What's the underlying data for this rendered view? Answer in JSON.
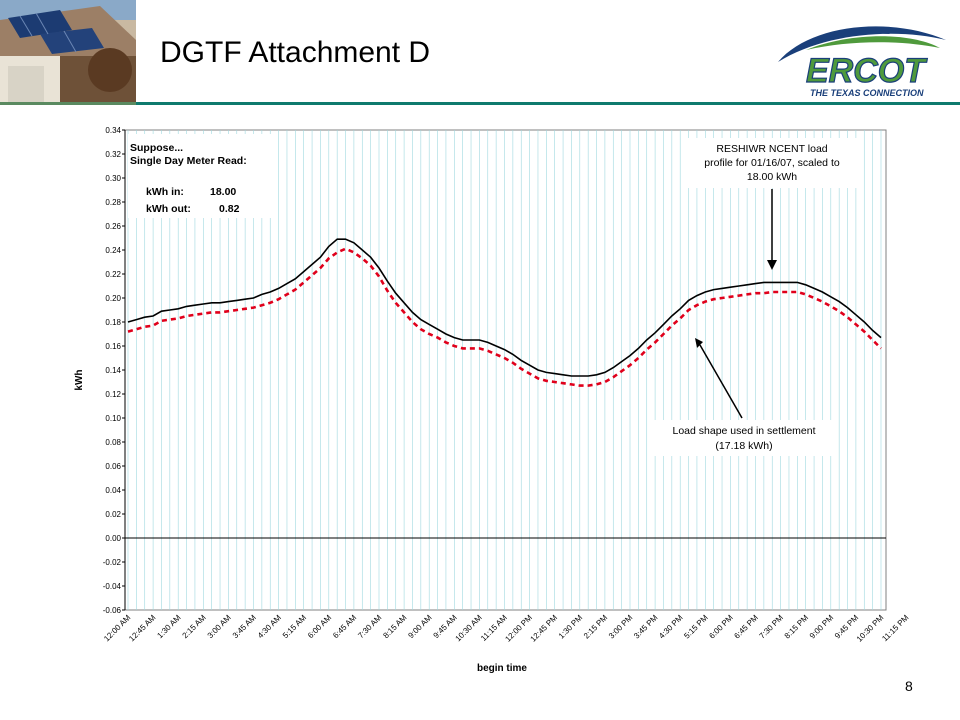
{
  "slide": {
    "title": "DGTF Attachment D",
    "number": "8",
    "logo_text": "ERCOT",
    "logo_tagline": "THE TEXAS CONNECTION",
    "colors": {
      "accent_rule": "#0f7a6e",
      "logo_navy": "#1a3f7a",
      "logo_green": "#4f9a3c"
    }
  },
  "chart_data": {
    "type": "line",
    "xlabel": "begin time",
    "ylabel": "kWh",
    "ylim": [
      -0.06,
      0.34
    ],
    "yticks": [
      "-0.06",
      "-0.04",
      "-0.02",
      "0.00",
      "0.02",
      "0.04",
      "0.06",
      "0.08",
      "0.10",
      "0.12",
      "0.14",
      "0.16",
      "0.18",
      "0.20",
      "0.22",
      "0.24",
      "0.26",
      "0.28",
      "0.30",
      "0.32",
      "0.34"
    ],
    "x_tick_labels": [
      "12:00 AM",
      "12:45 AM",
      "1:30 AM",
      "2:15 AM",
      "3:00 AM",
      "3:45 AM",
      "4:30 AM",
      "5:15 AM",
      "6:00 AM",
      "6:45 AM",
      "7:30 AM",
      "8:15 AM",
      "9:00 AM",
      "9:45 AM",
      "10:30 AM",
      "11:15 AM",
      "12:00 PM",
      "12:45 PM",
      "1:30 PM",
      "2:15 PM",
      "3:00 PM",
      "3:45 PM",
      "4:30 PM",
      "5:15 PM",
      "6:00 PM",
      "6:45 PM",
      "7:30 PM",
      "8:15 PM",
      "9:00 PM",
      "9:45 PM",
      "10:30 PM",
      "11:15 PM"
    ],
    "grid": "vertical",
    "colors": {
      "grid": "#9fd8df",
      "profile": "#000000",
      "settlement": "#e0001b"
    },
    "series": [
      {
        "key": "profile",
        "style": "solid",
        "values": [
          0.18,
          0.182,
          0.184,
          0.185,
          0.189,
          0.19,
          0.191,
          0.193,
          0.194,
          0.195,
          0.196,
          0.196,
          0.197,
          0.198,
          0.199,
          0.2,
          0.203,
          0.205,
          0.208,
          0.212,
          0.216,
          0.222,
          0.228,
          0.234,
          0.243,
          0.249,
          0.249,
          0.246,
          0.24,
          0.234,
          0.225,
          0.214,
          0.204,
          0.196,
          0.188,
          0.182,
          0.178,
          0.174,
          0.17,
          0.167,
          0.165,
          0.165,
          0.165,
          0.163,
          0.16,
          0.157,
          0.153,
          0.148,
          0.144,
          0.14,
          0.138,
          0.137,
          0.136,
          0.135,
          0.135,
          0.135,
          0.136,
          0.138,
          0.142,
          0.147,
          0.152,
          0.158,
          0.165,
          0.171,
          0.178,
          0.185,
          0.191,
          0.198,
          0.202,
          0.205,
          0.207,
          0.208,
          0.209,
          0.21,
          0.211,
          0.212,
          0.213,
          0.213,
          0.213,
          0.213,
          0.213,
          0.211,
          0.208,
          0.205,
          0.201,
          0.197,
          0.192,
          0.186,
          0.18,
          0.173,
          0.167
        ]
      },
      {
        "key": "settlement",
        "style": "dashed",
        "values": [
          0.172,
          0.174,
          0.176,
          0.177,
          0.181,
          0.182,
          0.183,
          0.185,
          0.186,
          0.187,
          0.188,
          0.188,
          0.189,
          0.19,
          0.191,
          0.192,
          0.194,
          0.196,
          0.199,
          0.203,
          0.207,
          0.213,
          0.219,
          0.225,
          0.233,
          0.238,
          0.241,
          0.238,
          0.233,
          0.227,
          0.218,
          0.206,
          0.196,
          0.188,
          0.18,
          0.174,
          0.17,
          0.167,
          0.163,
          0.16,
          0.158,
          0.158,
          0.158,
          0.156,
          0.153,
          0.15,
          0.146,
          0.141,
          0.137,
          0.133,
          0.131,
          0.13,
          0.129,
          0.128,
          0.127,
          0.127,
          0.128,
          0.13,
          0.134,
          0.139,
          0.144,
          0.15,
          0.157,
          0.163,
          0.17,
          0.177,
          0.183,
          0.19,
          0.194,
          0.197,
          0.199,
          0.2,
          0.201,
          0.202,
          0.203,
          0.204,
          0.204,
          0.205,
          0.205,
          0.205,
          0.205,
          0.203,
          0.2,
          0.197,
          0.193,
          0.189,
          0.184,
          0.178,
          0.172,
          0.165,
          0.158
        ]
      }
    ],
    "annotations": {
      "suppose_lines": [
        "Suppose...",
        "Single Day Meter Read:"
      ],
      "kwh_in_label": "kWh in:",
      "kwh_in_value": "18.00",
      "kwh_out_label": "kWh out:",
      "kwh_out_value": "0.82",
      "profile_label": [
        "RESHIWR NCENT load",
        "profile for 01/16/07, scaled to",
        "18.00 kWh"
      ],
      "settlement_label": [
        "Load shape used in settlement",
        "(17.18 kWh)"
      ]
    }
  }
}
